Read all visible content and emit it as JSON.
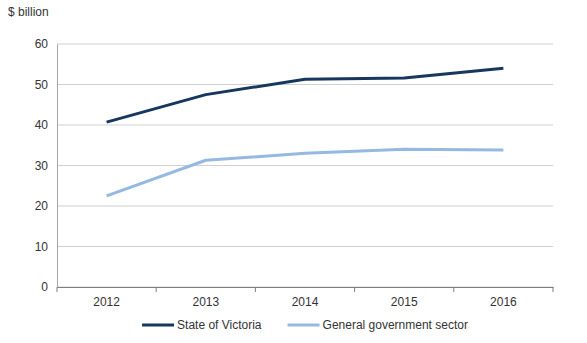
{
  "chart_data": {
    "type": "line",
    "y_label": "$ billion",
    "categories": [
      "2012",
      "2013",
      "2014",
      "2015",
      "2016"
    ],
    "series": [
      {
        "name": "State of Victoria",
        "color": "#17375e",
        "values": [
          40.7,
          47.5,
          51.3,
          51.6,
          54.0
        ]
      },
      {
        "name": "General government sector",
        "color": "#95b9e0",
        "values": [
          22.5,
          31.3,
          33.0,
          34.0,
          33.8
        ]
      }
    ],
    "ylim": [
      0,
      60
    ],
    "yticks": [
      0,
      10,
      20,
      30,
      40,
      50,
      60
    ],
    "grid": true,
    "legend": "bottom"
  }
}
